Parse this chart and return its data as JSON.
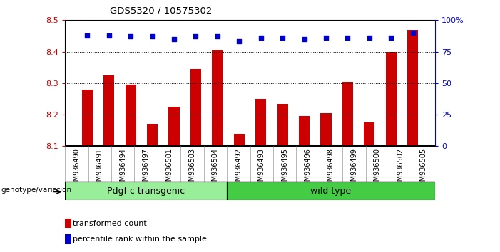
{
  "title": "GDS5320 / 10575302",
  "categories": [
    "GSM936490",
    "GSM936491",
    "GSM936494",
    "GSM936497",
    "GSM936501",
    "GSM936503",
    "GSM936504",
    "GSM936492",
    "GSM936493",
    "GSM936495",
    "GSM936496",
    "GSM936498",
    "GSM936499",
    "GSM936500",
    "GSM936502",
    "GSM936505"
  ],
  "bar_values": [
    8.28,
    8.325,
    8.295,
    8.17,
    8.225,
    8.345,
    8.405,
    8.14,
    8.25,
    8.235,
    8.195,
    8.205,
    8.305,
    8.175,
    8.4,
    8.47
  ],
  "percentile_values": [
    88,
    88,
    87,
    87,
    85,
    87,
    87,
    83,
    86,
    86,
    85,
    86,
    86,
    86,
    86,
    90
  ],
  "group1_label": "Pdgf-c transgenic",
  "group2_label": "wild type",
  "group1_count": 7,
  "group2_count": 9,
  "bar_color": "#cc0000",
  "percentile_color": "#0000cc",
  "group1_color": "#99ee99",
  "group2_color": "#44cc44",
  "ylim": [
    8.1,
    8.5
  ],
  "ylim_right": [
    0,
    100
  ],
  "yticks_left": [
    8.1,
    8.2,
    8.3,
    8.4,
    8.5
  ],
  "yticks_right": [
    0,
    25,
    50,
    75,
    100
  ],
  "legend_bar": "transformed count",
  "legend_pct": "percentile rank within the sample",
  "genotype_label": "genotype/variation",
  "background_color": "#ffffff",
  "tick_area_color": "#d0d0d0",
  "group_area_black_line_color": "#000000"
}
